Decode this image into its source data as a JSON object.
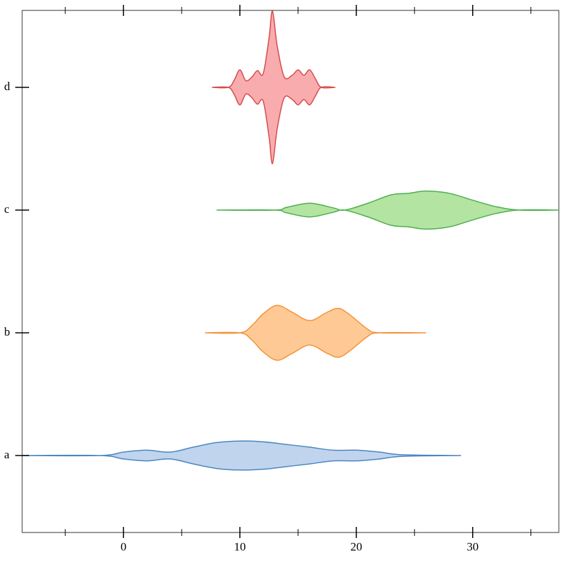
{
  "chart_data": {
    "type": "violin",
    "categories": [
      "a",
      "b",
      "c",
      "d"
    ],
    "xlim": [
      -8.7,
      37.4
    ],
    "xticks": [
      0,
      10,
      20,
      30
    ],
    "minor_xticks": [
      -5,
      5,
      15,
      25,
      35
    ],
    "series": [
      {
        "name": "a",
        "color": "#4a86c0",
        "fill": "#c0d4ee",
        "x": [
          -8.7,
          -2,
          0,
          2,
          4,
          6,
          8,
          10,
          12,
          14,
          16,
          18,
          20,
          22,
          24,
          29
        ],
        "values": [
          0,
          0,
          0.045,
          0.07,
          0.045,
          0.11,
          0.17,
          0.19,
          0.18,
          0.145,
          0.11,
          0.07,
          0.07,
          0.045,
          0.01,
          0
        ]
      },
      {
        "name": "b",
        "color": "#f5923a",
        "fill": "#fec994",
        "x": [
          7,
          10,
          11,
          12,
          13.2,
          14.5,
          16,
          17.5,
          18.5,
          19.5,
          21,
          22,
          26
        ],
        "values": [
          0,
          0,
          0.09,
          0.25,
          0.36,
          0.27,
          0.16,
          0.27,
          0.32,
          0.23,
          0.045,
          0,
          0
        ]
      },
      {
        "name": "c",
        "color": "#4cae4c",
        "fill": "#b3e4a1",
        "x": [
          8,
          13,
          14,
          16,
          18,
          19,
          21,
          23,
          24.5,
          26,
          28,
          30,
          32,
          34,
          37.4
        ],
        "values": [
          0,
          0,
          0.035,
          0.09,
          0.03,
          0,
          0.09,
          0.2,
          0.22,
          0.25,
          0.22,
          0.13,
          0.045,
          0,
          0
        ]
      },
      {
        "name": "d",
        "color": "#d84a4a",
        "fill": "#f8acae",
        "x": [
          7.6,
          9,
          9.5,
          10,
          10.5,
          11,
          11.5,
          12,
          12.5,
          12.8,
          13.2,
          13.8,
          14.5,
          15,
          15.5,
          16,
          16.5,
          17,
          18.2
        ],
        "values": [
          0,
          0,
          0.09,
          0.23,
          0.09,
          0.13,
          0.22,
          0.18,
          0.64,
          1,
          0.55,
          0.14,
          0.16,
          0.23,
          0.16,
          0.23,
          0.11,
          0,
          0
        ]
      }
    ]
  }
}
